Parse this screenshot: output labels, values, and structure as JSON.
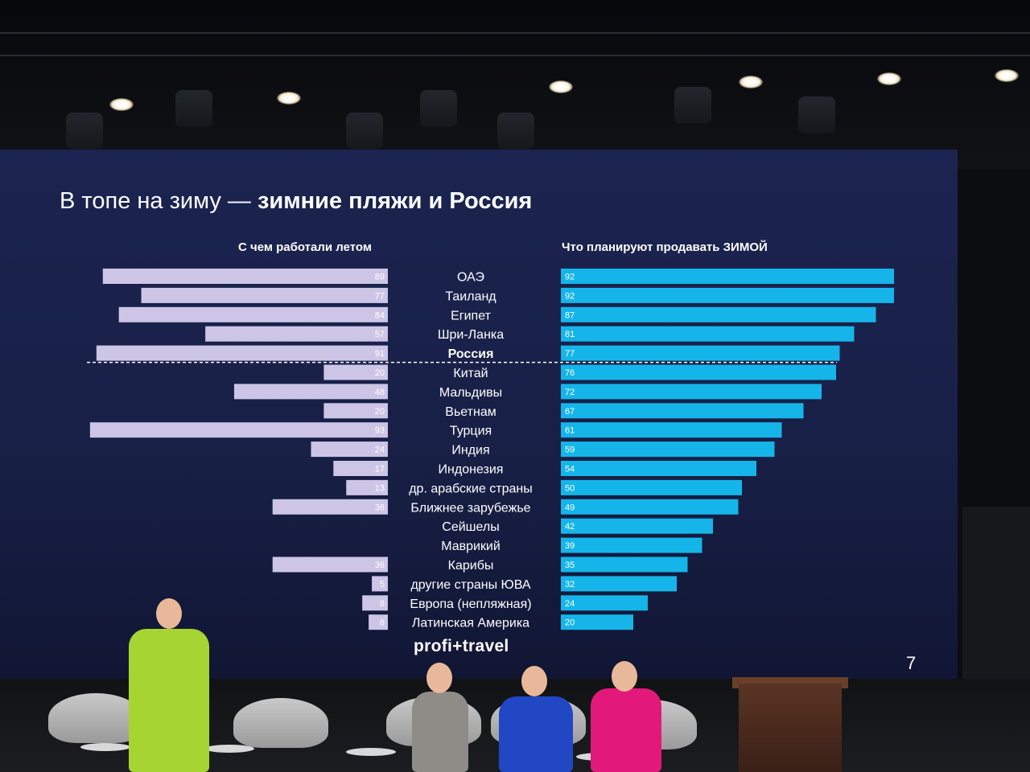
{
  "slide": {
    "title_light": "В топе на зиму —",
    "title_bold": "зимние пляжи и Россия",
    "left_header": "С чем работали летом",
    "right_header": "Что планируют продавать ЗИМОЙ",
    "brand": "profi+travel",
    "page_number": "7"
  },
  "colors": {
    "left_bar": "#ccc5e6",
    "right_bar": "#15b5ea",
    "background": "#1b2450"
  },
  "chart_data": {
    "type": "bar",
    "layout": "butterfly",
    "categories": [
      "ОАЭ",
      "Таиланд",
      "Египет",
      "Шри-Ланка",
      "Россия",
      "Китай",
      "Мальдивы",
      "Вьетнам",
      "Турция",
      "Индия",
      "Индонезия",
      "др. арабские страны",
      "Ближнее зарубежье",
      "Сейшелы",
      "Маврикий",
      "Карибы",
      "другие страны ЮВА",
      "Европа (непляжная)",
      "Латинская Америка"
    ],
    "highlighted_category": "Россия",
    "series": [
      {
        "name": "С чем работали летом",
        "values": [
          89,
          77,
          84,
          57,
          91,
          20,
          48,
          20,
          93,
          24,
          17,
          13,
          36,
          null,
          null,
          36,
          5,
          8,
          6
        ]
      },
      {
        "name": "Что планируют продавать ЗИМОЙ",
        "values": [
          92,
          92,
          87,
          81,
          77,
          76,
          72,
          67,
          61,
          59,
          54,
          50,
          49,
          42,
          39,
          35,
          32,
          24,
          20
        ]
      }
    ]
  }
}
